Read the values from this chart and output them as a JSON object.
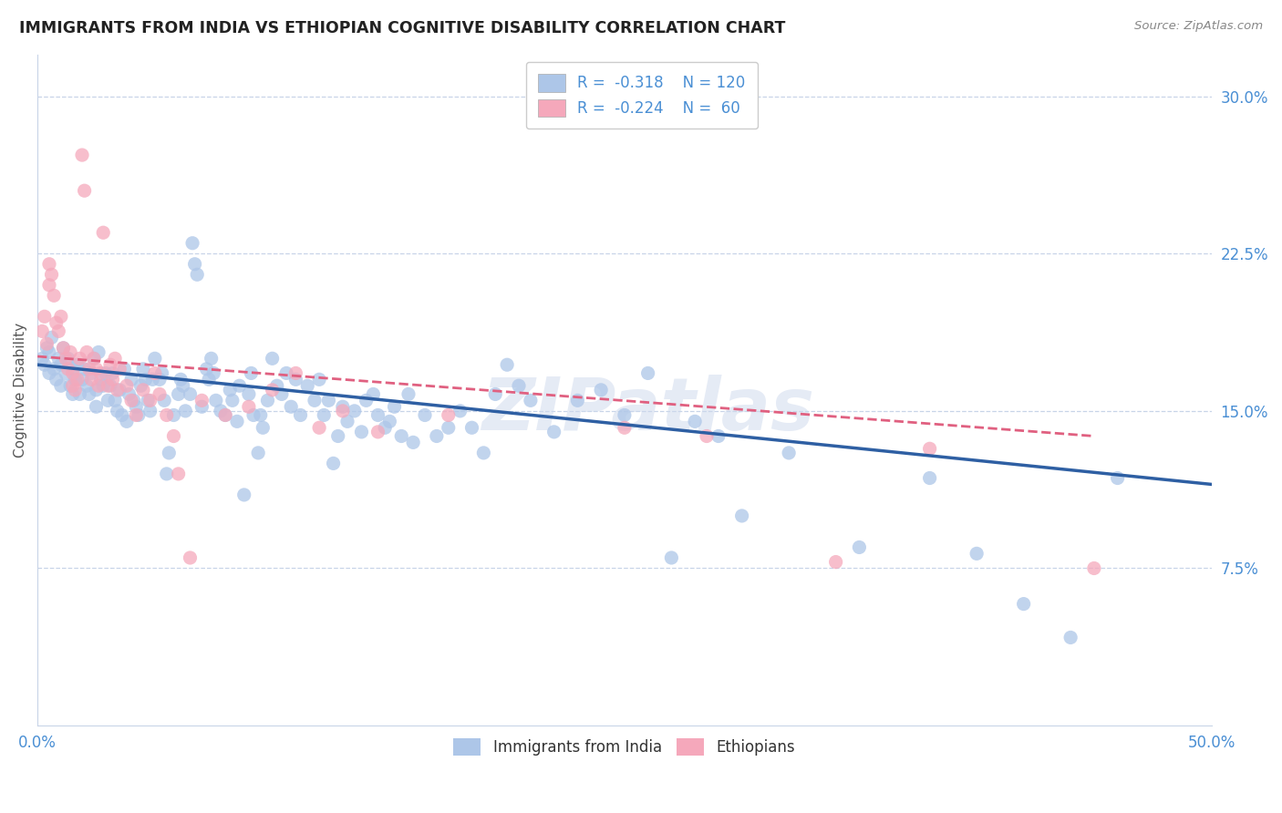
{
  "title": "IMMIGRANTS FROM INDIA VS ETHIOPIAN COGNITIVE DISABILITY CORRELATION CHART",
  "source": "Source: ZipAtlas.com",
  "ylabel": "Cognitive Disability",
  "xlim": [
    0.0,
    0.5
  ],
  "ylim": [
    0.0,
    0.32
  ],
  "xticks": [
    0.0,
    0.1,
    0.2,
    0.3,
    0.4,
    0.5
  ],
  "xticklabels": [
    "0.0%",
    "",
    "",
    "",
    "",
    "50.0%"
  ],
  "yticks_right": [
    0.075,
    0.15,
    0.225,
    0.3
  ],
  "ytick_right_labels": [
    "7.5%",
    "15.0%",
    "22.5%",
    "30.0%"
  ],
  "india_color": "#adc6e8",
  "ethiopia_color": "#f5a8bb",
  "india_line_color": "#2e5fa3",
  "ethiopia_line_color": "#e06080",
  "watermark": "ZIPatlas",
  "background_color": "#ffffff",
  "grid_color": "#c8d4e8",
  "title_color": "#222222",
  "right_label_color": "#4a8fd4",
  "india_scatter": [
    [
      0.002,
      0.175
    ],
    [
      0.003,
      0.172
    ],
    [
      0.004,
      0.18
    ],
    [
      0.005,
      0.168
    ],
    [
      0.005,
      0.178
    ],
    [
      0.006,
      0.185
    ],
    [
      0.007,
      0.17
    ],
    [
      0.008,
      0.165
    ],
    [
      0.009,
      0.175
    ],
    [
      0.01,
      0.172
    ],
    [
      0.01,
      0.162
    ],
    [
      0.011,
      0.18
    ],
    [
      0.012,
      0.168
    ],
    [
      0.013,
      0.175
    ],
    [
      0.014,
      0.162
    ],
    [
      0.015,
      0.17
    ],
    [
      0.015,
      0.158
    ],
    [
      0.016,
      0.165
    ],
    [
      0.017,
      0.172
    ],
    [
      0.018,
      0.158
    ],
    [
      0.019,
      0.165
    ],
    [
      0.02,
      0.17
    ],
    [
      0.021,
      0.162
    ],
    [
      0.022,
      0.158
    ],
    [
      0.023,
      0.168
    ],
    [
      0.024,
      0.175
    ],
    [
      0.025,
      0.16
    ],
    [
      0.025,
      0.152
    ],
    [
      0.026,
      0.178
    ],
    [
      0.027,
      0.165
    ],
    [
      0.028,
      0.162
    ],
    [
      0.029,
      0.168
    ],
    [
      0.03,
      0.155
    ],
    [
      0.031,
      0.162
    ],
    [
      0.032,
      0.168
    ],
    [
      0.033,
      0.155
    ],
    [
      0.034,
      0.15
    ],
    [
      0.035,
      0.16
    ],
    [
      0.036,
      0.148
    ],
    [
      0.037,
      0.17
    ],
    [
      0.038,
      0.145
    ],
    [
      0.039,
      0.158
    ],
    [
      0.04,
      0.165
    ],
    [
      0.041,
      0.155
    ],
    [
      0.042,
      0.152
    ],
    [
      0.043,
      0.148
    ],
    [
      0.044,
      0.162
    ],
    [
      0.045,
      0.17
    ],
    [
      0.046,
      0.165
    ],
    [
      0.047,
      0.155
    ],
    [
      0.048,
      0.15
    ],
    [
      0.049,
      0.165
    ],
    [
      0.05,
      0.175
    ],
    [
      0.052,
      0.165
    ],
    [
      0.053,
      0.168
    ],
    [
      0.054,
      0.155
    ],
    [
      0.055,
      0.12
    ],
    [
      0.056,
      0.13
    ],
    [
      0.058,
      0.148
    ],
    [
      0.06,
      0.158
    ],
    [
      0.061,
      0.165
    ],
    [
      0.062,
      0.162
    ],
    [
      0.063,
      0.15
    ],
    [
      0.065,
      0.158
    ],
    [
      0.066,
      0.23
    ],
    [
      0.067,
      0.22
    ],
    [
      0.068,
      0.215
    ],
    [
      0.07,
      0.152
    ],
    [
      0.072,
      0.17
    ],
    [
      0.073,
      0.165
    ],
    [
      0.074,
      0.175
    ],
    [
      0.075,
      0.168
    ],
    [
      0.076,
      0.155
    ],
    [
      0.078,
      0.15
    ],
    [
      0.08,
      0.148
    ],
    [
      0.082,
      0.16
    ],
    [
      0.083,
      0.155
    ],
    [
      0.085,
      0.145
    ],
    [
      0.086,
      0.162
    ],
    [
      0.088,
      0.11
    ],
    [
      0.09,
      0.158
    ],
    [
      0.091,
      0.168
    ],
    [
      0.092,
      0.148
    ],
    [
      0.094,
      0.13
    ],
    [
      0.095,
      0.148
    ],
    [
      0.096,
      0.142
    ],
    [
      0.098,
      0.155
    ],
    [
      0.1,
      0.175
    ],
    [
      0.102,
      0.162
    ],
    [
      0.104,
      0.158
    ],
    [
      0.106,
      0.168
    ],
    [
      0.108,
      0.152
    ],
    [
      0.11,
      0.165
    ],
    [
      0.112,
      0.148
    ],
    [
      0.115,
      0.162
    ],
    [
      0.118,
      0.155
    ],
    [
      0.12,
      0.165
    ],
    [
      0.122,
      0.148
    ],
    [
      0.124,
      0.155
    ],
    [
      0.126,
      0.125
    ],
    [
      0.128,
      0.138
    ],
    [
      0.13,
      0.152
    ],
    [
      0.132,
      0.145
    ],
    [
      0.135,
      0.15
    ],
    [
      0.138,
      0.14
    ],
    [
      0.14,
      0.155
    ],
    [
      0.143,
      0.158
    ],
    [
      0.145,
      0.148
    ],
    [
      0.148,
      0.142
    ],
    [
      0.15,
      0.145
    ],
    [
      0.152,
      0.152
    ],
    [
      0.155,
      0.138
    ],
    [
      0.158,
      0.158
    ],
    [
      0.16,
      0.135
    ],
    [
      0.165,
      0.148
    ],
    [
      0.17,
      0.138
    ],
    [
      0.175,
      0.142
    ],
    [
      0.18,
      0.15
    ],
    [
      0.185,
      0.142
    ],
    [
      0.19,
      0.13
    ],
    [
      0.195,
      0.158
    ],
    [
      0.2,
      0.172
    ],
    [
      0.205,
      0.162
    ],
    [
      0.21,
      0.155
    ],
    [
      0.22,
      0.14
    ],
    [
      0.23,
      0.155
    ],
    [
      0.24,
      0.16
    ],
    [
      0.25,
      0.148
    ],
    [
      0.26,
      0.168
    ],
    [
      0.27,
      0.08
    ],
    [
      0.28,
      0.145
    ],
    [
      0.29,
      0.138
    ],
    [
      0.3,
      0.1
    ],
    [
      0.32,
      0.13
    ],
    [
      0.35,
      0.085
    ],
    [
      0.38,
      0.118
    ],
    [
      0.4,
      0.082
    ],
    [
      0.42,
      0.058
    ],
    [
      0.44,
      0.042
    ],
    [
      0.46,
      0.118
    ]
  ],
  "ethiopia_scatter": [
    [
      0.002,
      0.188
    ],
    [
      0.003,
      0.195
    ],
    [
      0.004,
      0.182
    ],
    [
      0.005,
      0.21
    ],
    [
      0.005,
      0.22
    ],
    [
      0.006,
      0.215
    ],
    [
      0.007,
      0.205
    ],
    [
      0.008,
      0.192
    ],
    [
      0.009,
      0.188
    ],
    [
      0.01,
      0.195
    ],
    [
      0.011,
      0.18
    ],
    [
      0.012,
      0.175
    ],
    [
      0.013,
      0.17
    ],
    [
      0.014,
      0.178
    ],
    [
      0.015,
      0.168
    ],
    [
      0.015,
      0.162
    ],
    [
      0.016,
      0.16
    ],
    [
      0.017,
      0.165
    ],
    [
      0.018,
      0.175
    ],
    [
      0.019,
      0.272
    ],
    [
      0.02,
      0.255
    ],
    [
      0.021,
      0.178
    ],
    [
      0.022,
      0.17
    ],
    [
      0.023,
      0.165
    ],
    [
      0.024,
      0.175
    ],
    [
      0.025,
      0.17
    ],
    [
      0.026,
      0.162
    ],
    [
      0.027,
      0.168
    ],
    [
      0.028,
      0.235
    ],
    [
      0.03,
      0.162
    ],
    [
      0.031,
      0.172
    ],
    [
      0.032,
      0.165
    ],
    [
      0.033,
      0.175
    ],
    [
      0.034,
      0.16
    ],
    [
      0.035,
      0.17
    ],
    [
      0.038,
      0.162
    ],
    [
      0.04,
      0.155
    ],
    [
      0.042,
      0.148
    ],
    [
      0.045,
      0.16
    ],
    [
      0.048,
      0.155
    ],
    [
      0.05,
      0.168
    ],
    [
      0.052,
      0.158
    ],
    [
      0.055,
      0.148
    ],
    [
      0.058,
      0.138
    ],
    [
      0.06,
      0.12
    ],
    [
      0.065,
      0.08
    ],
    [
      0.07,
      0.155
    ],
    [
      0.08,
      0.148
    ],
    [
      0.09,
      0.152
    ],
    [
      0.1,
      0.16
    ],
    [
      0.11,
      0.168
    ],
    [
      0.12,
      0.142
    ],
    [
      0.13,
      0.15
    ],
    [
      0.145,
      0.14
    ],
    [
      0.175,
      0.148
    ],
    [
      0.25,
      0.142
    ],
    [
      0.285,
      0.138
    ],
    [
      0.34,
      0.078
    ],
    [
      0.38,
      0.132
    ],
    [
      0.45,
      0.075
    ]
  ],
  "india_trendline": {
    "x_start": 0.0,
    "x_end": 0.5,
    "y_start": 0.172,
    "y_end": 0.115
  },
  "ethiopia_trendline": {
    "x_start": 0.0,
    "x_end": 0.45,
    "y_start": 0.176,
    "y_end": 0.138
  }
}
